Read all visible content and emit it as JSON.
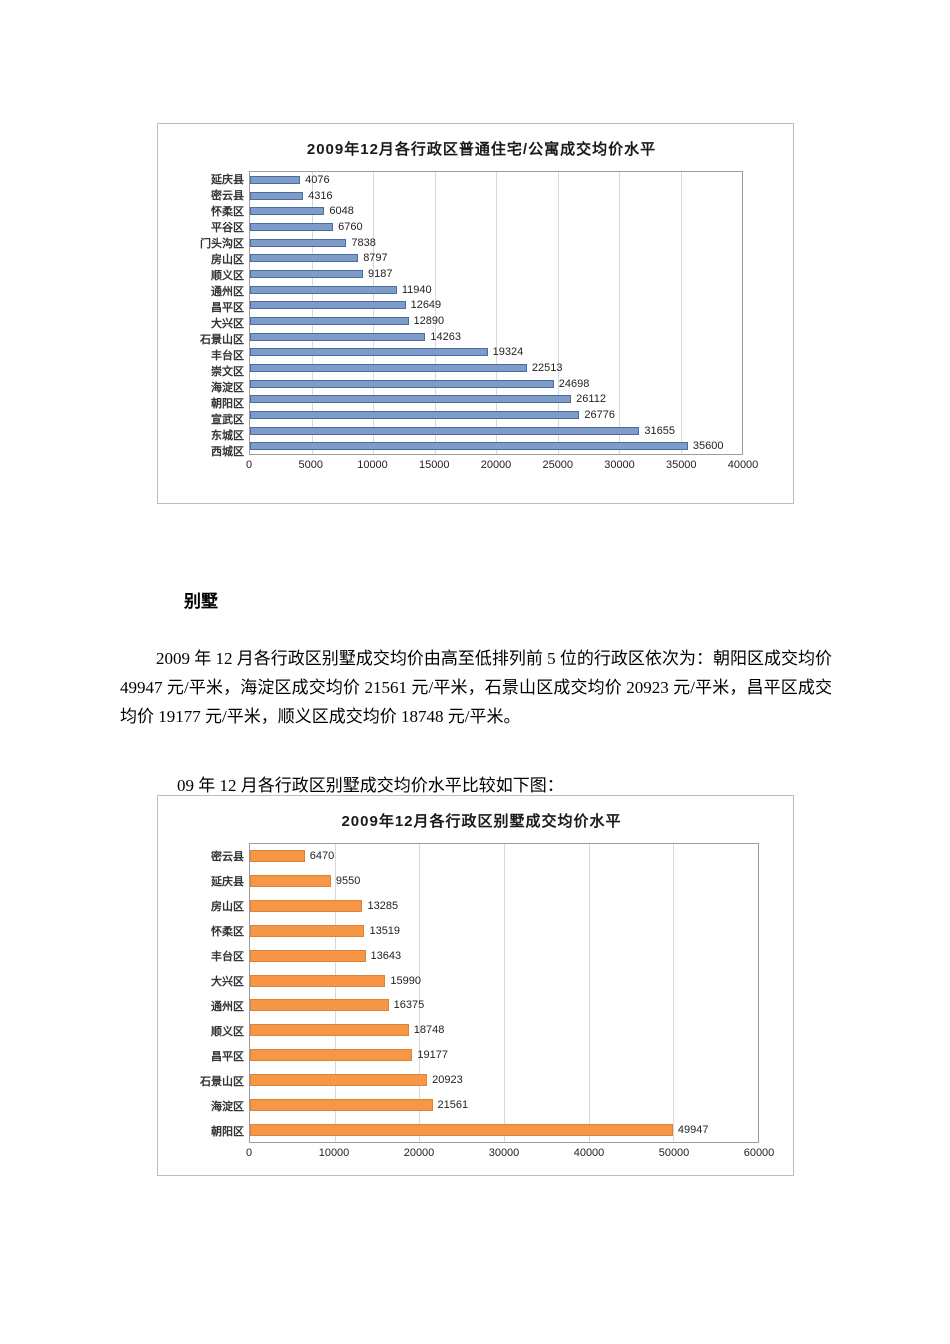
{
  "page": {
    "heading_villa": "别墅",
    "paragraph_villa": "2009 年 12 月各行政区别墅成交均价由高至低排列前 5 位的行政区依次为：朝阳区成交均价 49947 元/平米，海淀区成交均价 21561 元/平米，石景山区成交均价 20923 元/平米，昌平区成交均价 19177 元/平米，顺义区成交均价 18748 元/平米。",
    "caption_villa_chart": "09 年 12 月各行政区别墅成交均价水平比较如下图："
  },
  "chart_data": [
    {
      "type": "bar",
      "orientation": "horizontal",
      "title": "2009年12月各行政区普通住宅/公寓成交均价水平",
      "xlabel": "",
      "ylabel": "",
      "categories": [
        "延庆县",
        "密云县",
        "怀柔区",
        "平谷区",
        "门头沟区",
        "房山区",
        "顺义区",
        "通州区",
        "昌平区",
        "大兴区",
        "石景山区",
        "丰台区",
        "崇文区",
        "海淀区",
        "朝阳区",
        "宣武区",
        "东城区",
        "西城区"
      ],
      "values": [
        4076,
        4316,
        6048,
        6760,
        7838,
        8797,
        9187,
        11940,
        12649,
        12890,
        14263,
        19324,
        22513,
        24698,
        26112,
        26776,
        31655,
        35600
      ],
      "xlim": [
        0,
        40000
      ],
      "xticks": [
        0,
        5000,
        10000,
        15000,
        20000,
        25000,
        30000,
        35000,
        40000
      ],
      "grid": true,
      "legend": "none",
      "bar_color": "#7d9cc9",
      "bar_border": "#4a6d9e"
    },
    {
      "type": "bar",
      "orientation": "horizontal",
      "title": "2009年12月各行政区别墅成交均价水平",
      "xlabel": "",
      "ylabel": "",
      "categories": [
        "密云县",
        "延庆县",
        "房山区",
        "怀柔区",
        "丰台区",
        "大兴区",
        "通州区",
        "顺义区",
        "昌平区",
        "石景山区",
        "海淀区",
        "朝阳区"
      ],
      "values": [
        6470,
        9550,
        13285,
        13519,
        13643,
        15990,
        16375,
        18748,
        19177,
        20923,
        21561,
        49947
      ],
      "xlim": [
        0,
        60000
      ],
      "xticks": [
        0,
        10000,
        20000,
        30000,
        40000,
        50000,
        60000
      ],
      "grid": true,
      "legend": "none",
      "bar_color": "#f79646",
      "bar_border": "#dd8335"
    }
  ]
}
